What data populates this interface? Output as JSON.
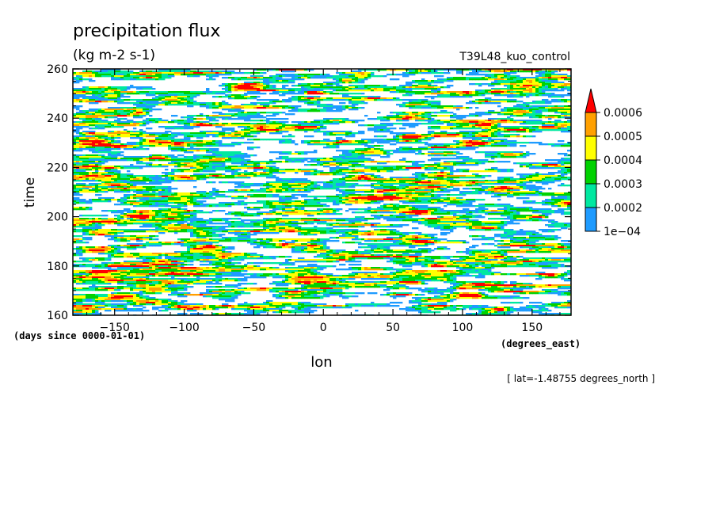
{
  "chart_data": {
    "type": "heatmap",
    "title": "precipitation flux",
    "units": "(kg m-2 s-1)",
    "run_name": "T39L48_kuo_control",
    "xlabel": "lon",
    "xunits": "(degrees_east)",
    "ylabel": "time",
    "yunits": "(days since 0000-01-01)",
    "section_note": "[ lat=-1.48755 degrees_north ]",
    "xlim": [
      -180,
      178
    ],
    "ylim": [
      160,
      260
    ],
    "xticks": [
      {
        "value": -150,
        "label": "−150"
      },
      {
        "value": -100,
        "label": "−100"
      },
      {
        "value": -50,
        "label": "−50"
      },
      {
        "value": 0,
        "label": "0"
      },
      {
        "value": 50,
        "label": "50"
      },
      {
        "value": 100,
        "label": "100"
      },
      {
        "value": 150,
        "label": "150"
      }
    ],
    "yticks": [
      {
        "value": 160,
        "label": "160"
      },
      {
        "value": 180,
        "label": "180"
      },
      {
        "value": 200,
        "label": "200"
      },
      {
        "value": 220,
        "label": "220"
      },
      {
        "value": 240,
        "label": "240"
      },
      {
        "value": 260,
        "label": "260"
      }
    ],
    "colorbar": {
      "levels": [
        {
          "value": 0.0001,
          "label": "1e−04"
        },
        {
          "value": 0.0002,
          "label": "0.0002"
        },
        {
          "value": 0.0003,
          "label": "0.0003"
        },
        {
          "value": 0.0004,
          "label": "0.0004"
        },
        {
          "value": 0.0005,
          "label": "0.0005"
        },
        {
          "value": 0.0006,
          "label": "0.0006"
        }
      ],
      "colors": [
        "#1e9bff",
        "#00e8a0",
        "#00d200",
        "#ffff00",
        "#ffa000",
        "#ff0000"
      ],
      "extend": "max"
    }
  }
}
